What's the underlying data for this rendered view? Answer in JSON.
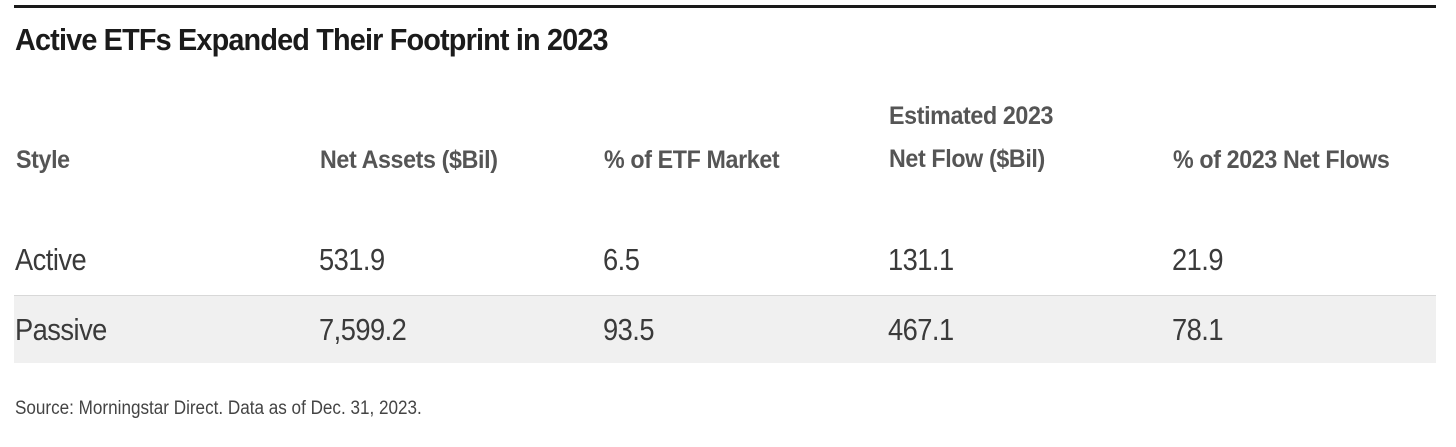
{
  "title": "Active ETFs Expanded Their Footprint in 2023",
  "table": {
    "headers": [
      {
        "lines": [
          "Style"
        ]
      },
      {
        "lines": [
          "Net Assets ($Bil)"
        ]
      },
      {
        "lines": [
          "% of ETF Market"
        ]
      },
      {
        "lines": [
          "Estimated 2023",
          "Net Flow ($Bil)"
        ]
      },
      {
        "lines": [
          "% of 2023 Net Flows"
        ]
      }
    ],
    "rows": [
      {
        "style": "Active",
        "net_assets": "531.9",
        "pct_market": "6.5",
        "net_flow": "131.1",
        "pct_flows": "21.9"
      },
      {
        "style": "Passive",
        "net_assets": "7,599.2",
        "pct_market": "93.5",
        "net_flow": "467.1",
        "pct_flows": "78.1"
      }
    ]
  },
  "source": "Source: Morningstar Direct. Data as of Dec. 31, 2023.",
  "colors": {
    "rule": "#1a1a1a",
    "header_text": "#555555",
    "body_text": "#3a3a3a",
    "shaded_row": "#f0f0f0"
  }
}
